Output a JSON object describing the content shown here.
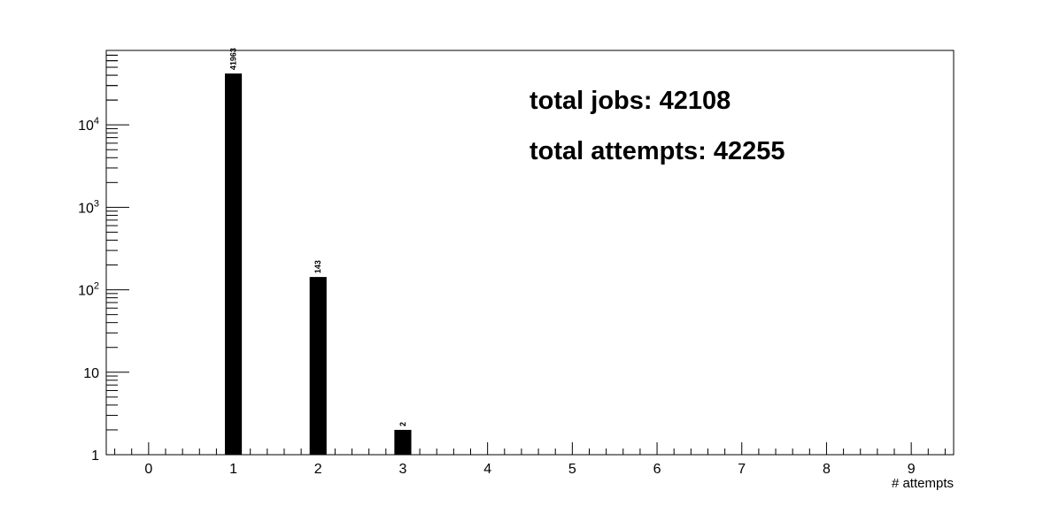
{
  "chart_data": {
    "type": "bar",
    "title": "",
    "xlabel": "# attempts",
    "ylabel": "",
    "yscale": "log",
    "xlim": [
      -0.5,
      9.5
    ],
    "ylim": [
      1,
      80000
    ],
    "grid": false,
    "legend": "none",
    "x_tick_labels": [
      "0",
      "1",
      "2",
      "3",
      "4",
      "5",
      "6",
      "7",
      "8",
      "9"
    ],
    "y_tick_labels": [
      {
        "value": 1,
        "base": "1",
        "exp": ""
      },
      {
        "value": 10,
        "base": "10",
        "exp": ""
      },
      {
        "value": 100,
        "base": "10",
        "exp": "2"
      },
      {
        "value": 1000,
        "base": "10",
        "exp": "3"
      },
      {
        "value": 10000,
        "base": "10",
        "exp": "4"
      }
    ],
    "bars": [
      {
        "x": 1,
        "value": 41963,
        "label": "41963"
      },
      {
        "x": 2,
        "value": 143,
        "label": "143"
      },
      {
        "x": 3,
        "value": 2,
        "label": "2"
      }
    ],
    "annotations": [
      "total jobs: 42108",
      "total attempts: 42255"
    ],
    "bar_color": "#000000"
  }
}
